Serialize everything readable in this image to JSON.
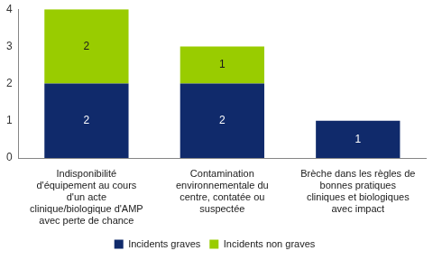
{
  "chart_data": {
    "type": "bar",
    "categories": [
      "Indisponibilité d'équipement au cours d'un acte clinique/biologique d'AMP avec perte de chance",
      "Contamination environnementale du centre, contatée ou suspectée",
      "Brèche dans les règles de bonnes pratiques cliniques et biologiques avec impact"
    ],
    "series": [
      {
        "name": "Incidents graves",
        "color": "#102a6b",
        "values": [
          2,
          2,
          1
        ]
      },
      {
        "name": "Incidents non graves",
        "color": "#99cc00",
        "values": [
          2,
          1,
          null
        ]
      }
    ],
    "ylim": [
      0,
      4
    ],
    "yticks": [
      0,
      1,
      2,
      3,
      4
    ],
    "grid": false,
    "stacked": true,
    "data_labels": true,
    "legend": "bottom"
  }
}
